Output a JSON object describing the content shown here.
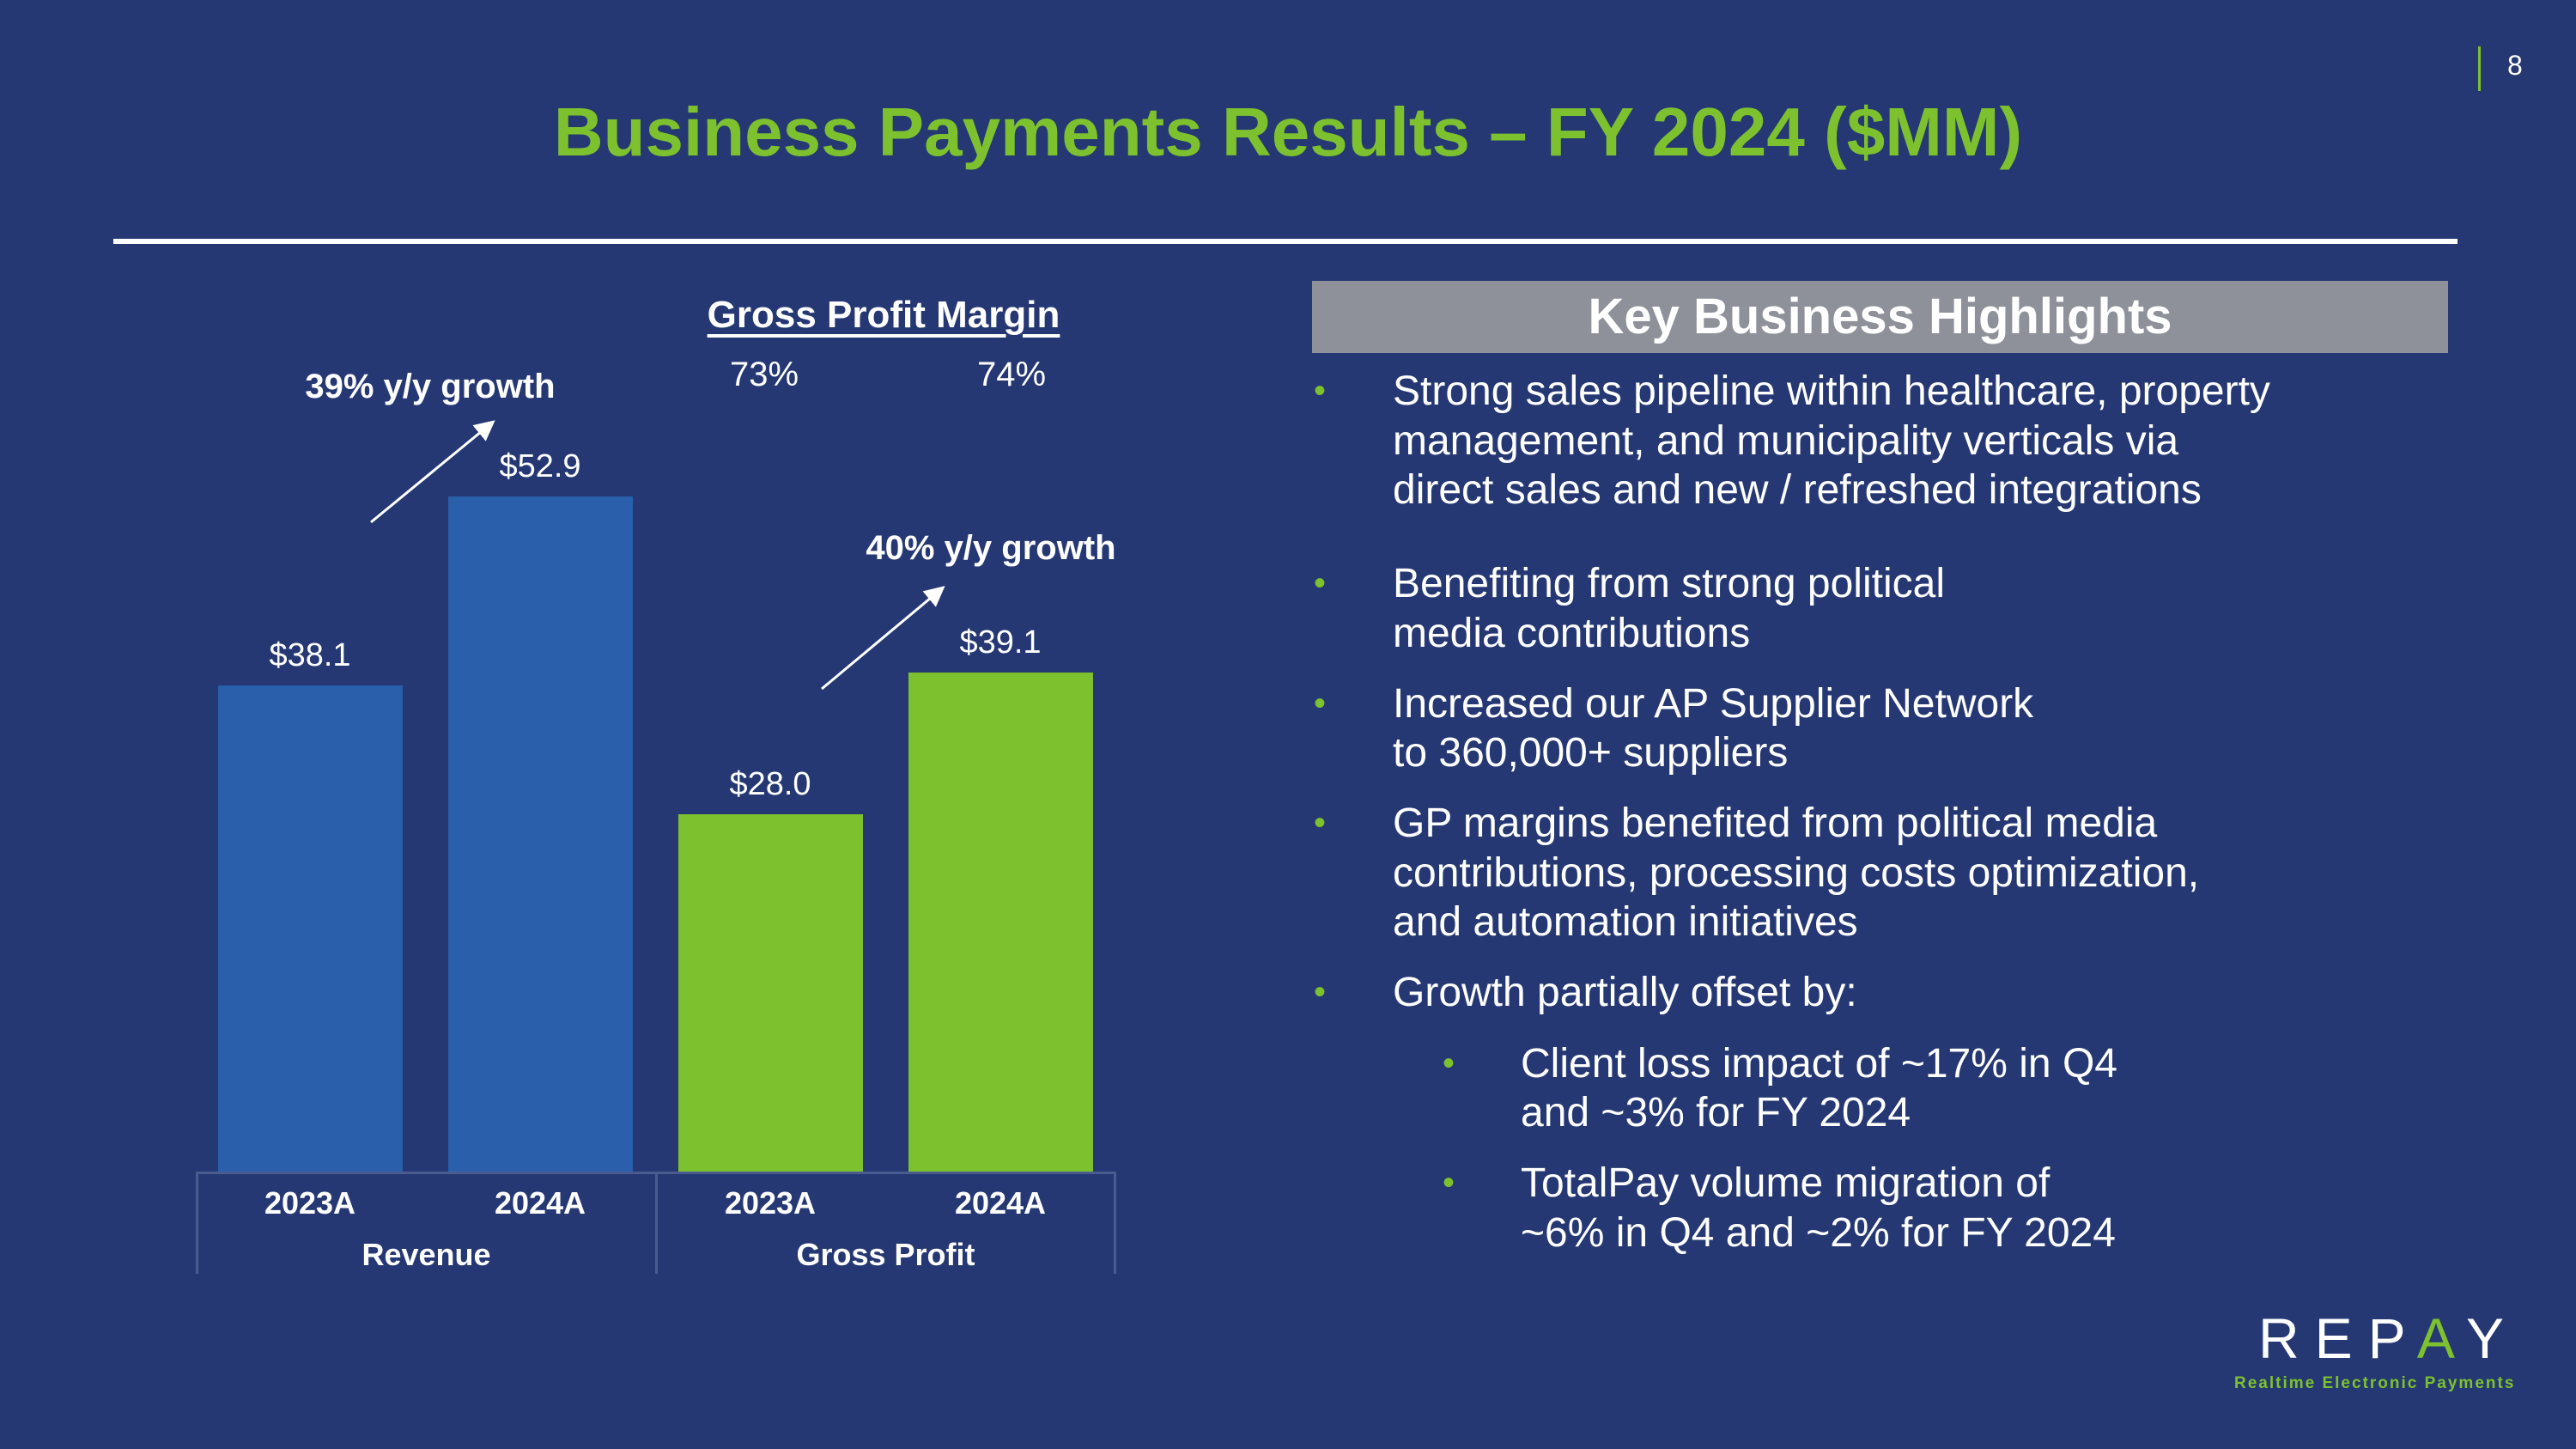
{
  "title": "Business Payments Results – FY 2024 ($MM)",
  "page_number": "8",
  "chart_data": {
    "type": "bar",
    "categories": [
      "2023A",
      "2024A",
      "2023A",
      "2024A"
    ],
    "groups": [
      "Revenue",
      "Gross Profit"
    ],
    "values": [
      38.1,
      52.9,
      28.0,
      39.1
    ],
    "value_labels": [
      "$38.1",
      "$52.9",
      "$28.0",
      "$39.1"
    ],
    "colors": [
      "#2a5fab",
      "#2a5fab",
      "#7dc22e",
      "#7dc22e"
    ],
    "ylim": [
      0,
      52.9
    ],
    "annotations": [
      "39% y/y growth",
      "40% y/y growth"
    ],
    "gross_profit_margin": {
      "title": "Gross Profit Margin",
      "values": [
        "73%",
        "74%"
      ]
    }
  },
  "highlights": {
    "title": "Key Business Highlights",
    "bullets": [
      [
        "Strong sales pipeline within healthcare, property",
        "management, and municipality verticals via",
        "direct sales and new / refreshed integrations"
      ],
      [
        "Benefiting from strong political",
        "media contributions"
      ],
      [
        "Increased our AP Supplier Network",
        "to 360,000+ suppliers"
      ],
      [
        "GP margins benefited from political media",
        "contributions, processing costs optimization,",
        "and automation initiatives"
      ],
      [
        "Growth partially offset by:"
      ]
    ],
    "sub_bullets": [
      [
        "Client loss impact of ~17% in Q4",
        "and ~3% for FY 2024"
      ],
      [
        "TotalPay volume migration of",
        "~6% in Q4 and ~2% for FY 2024"
      ]
    ]
  },
  "logo": {
    "name_pre": "REP",
    "name_a": "A",
    "name_post": "Y",
    "tagline": "Realtime Electronic Payments"
  }
}
